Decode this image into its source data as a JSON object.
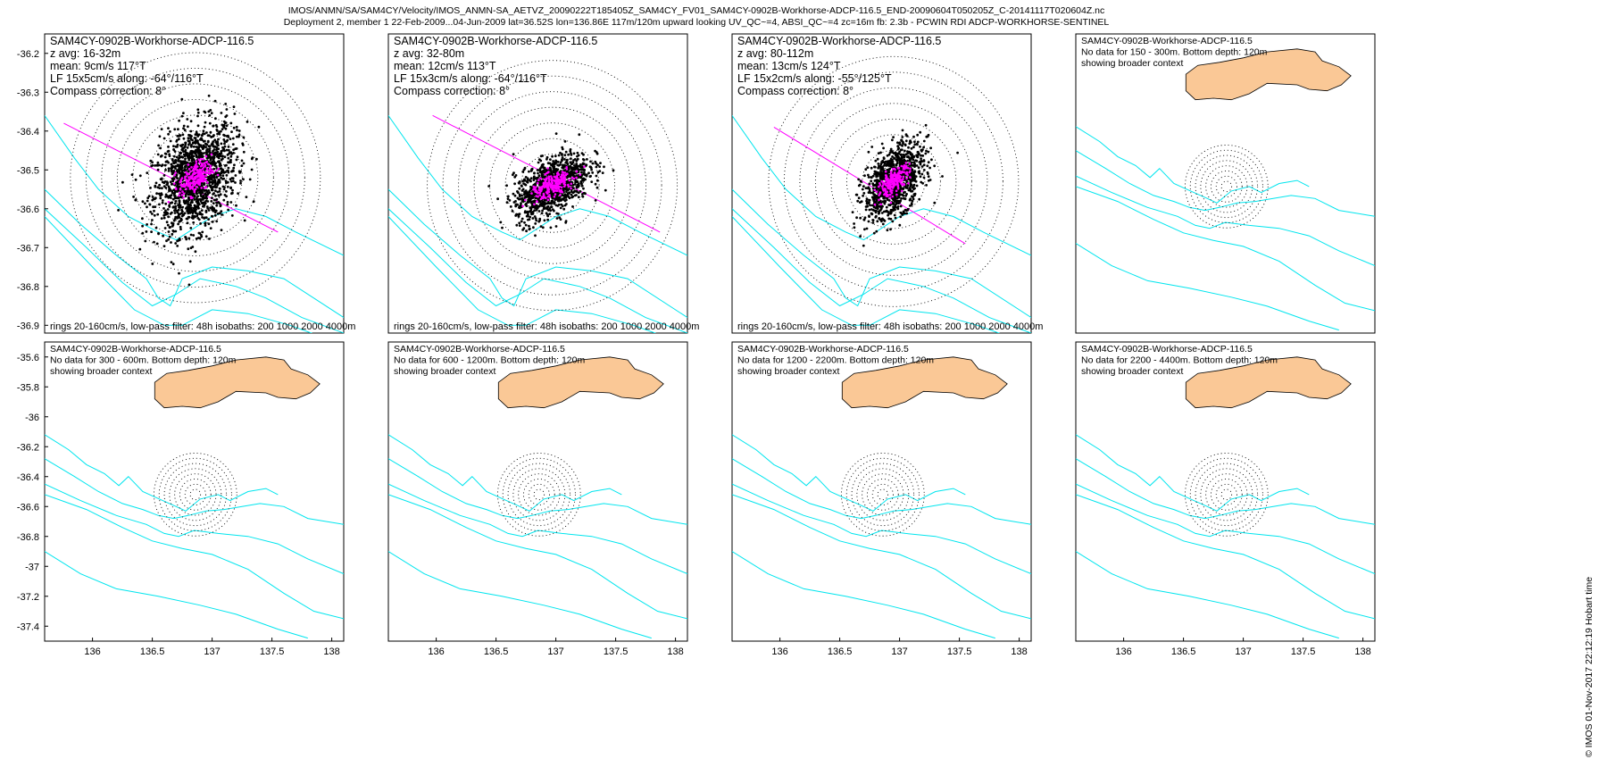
{
  "header": {
    "line1": "IMOS/ANMN/SA/SAM4CY/Velocity/IMOS_ANMN-SA_AETVZ_20090222T185405Z_SAM4CY_FV01_SAM4CY-0902B-Workhorse-ADCP-116.5_END-20090604T050205Z_C-20141117T020604Z.nc",
    "line2": "Deployment 2, member 1 22-Feb-2009...04-Jun-2009 lat=36.52S lon=136.86E 117m/120m upward looking UV_QC~=4, ABSI_QC~=4 zc=16m fb: 2.3b - PCWIN RDI ADCP-WORKHORSE-SENTINEL"
  },
  "credit": "© IMOS 01-Nov-2017 22:12:19 Hobart time",
  "chart_data": [
    {
      "type": "scatter",
      "panel": "velocity-hodograph",
      "lines": [
        "SAM4CY-0902B-Workhorse-ADCP-116.5",
        "z avg: 16-32m",
        "mean: 9cm/s 117°T",
        "LF 15x5cm/s along: -64°/116°T",
        "Compass correction: 8°"
      ],
      "footer": "rings 20-160cm/s, low-pass filter: 48h isobaths: 200 1000 2000 4000m",
      "xlim": [
        135.6,
        138.1
      ],
      "ylim": [
        -36.92,
        -36.15
      ],
      "yticks": [
        "-36.2",
        "-36.3",
        "-36.4",
        "-36.5",
        "-36.6",
        "-36.7",
        "-36.8",
        "-36.9"
      ],
      "center": [
        136.86,
        -36.52
      ],
      "rings": 8,
      "spread": [
        0.19,
        0.065
      ],
      "lf_spread": [
        0.075,
        0.02
      ],
      "major_axis": {
        "along_deg": 116,
        "start": [
          135.76,
          -36.38
        ],
        "end": [
          137.55,
          -36.66
        ]
      },
      "colors": {
        "rings": "#000000",
        "raw": "#000000",
        "low_pass": "#ff00ff",
        "major_axis": "#ff00ff",
        "isobaths": "#00e5ee"
      }
    },
    {
      "type": "scatter",
      "panel": "velocity-hodograph",
      "lines": [
        "SAM4CY-0902B-Workhorse-ADCP-116.5",
        "z avg: 32-80m",
        "mean: 12cm/s 113°T",
        "LF 15x3cm/s along: -64°/116°T",
        "Compass correction: 8°"
      ],
      "footer": "rings 20-160cm/s, low-pass filter: 48h isobaths: 200 1000 2000 4000m",
      "xlim": [
        135.6,
        138.1
      ],
      "ylim": [
        -36.92,
        -36.15
      ],
      "center": [
        136.97,
        -36.54
      ],
      "rings": 8,
      "spread": [
        0.17,
        0.035
      ],
      "lf_spread": [
        0.1,
        0.015
      ],
      "major_axis": {
        "along_deg": 116,
        "start": [
          135.97,
          -36.36
        ],
        "end": [
          137.87,
          -36.66
        ]
      },
      "colors": {
        "rings": "#000000",
        "raw": "#000000",
        "low_pass": "#ff00ff",
        "major_axis": "#ff00ff",
        "isobaths": "#00e5ee"
      }
    },
    {
      "type": "scatter",
      "panel": "velocity-hodograph",
      "lines": [
        "SAM4CY-0902B-Workhorse-ADCP-116.5",
        "z avg: 80-112m",
        "mean: 13cm/s 124°T",
        "LF 15x2cm/s along: -55°/125°T",
        "Compass correction: 8°"
      ],
      "footer": "rings 20-160cm/s, low-pass filter: 48h isobaths: 200 1000 2000 4000m",
      "xlim": [
        135.6,
        138.1
      ],
      "ylim": [
        -36.92,
        -36.15
      ],
      "center": [
        136.95,
        -36.53
      ],
      "rings": 8,
      "spread": [
        0.15,
        0.04
      ],
      "lf_spread": [
        0.08,
        0.015
      ],
      "major_axis": {
        "along_deg": 125,
        "start": [
          135.95,
          -36.39
        ],
        "end": [
          137.55,
          -36.69
        ]
      },
      "colors": {
        "rings": "#000000",
        "raw": "#000000",
        "low_pass": "#ff00ff",
        "major_axis": "#ff00ff",
        "isobaths": "#00e5ee"
      }
    },
    {
      "type": "map",
      "panel": "no-data",
      "lines": [
        "SAM4CY-0902B-Workhorse-ADCP-116.5",
        "No data for 150 - 300m. Bottom depth: 120m",
        "showing broader context"
      ],
      "xlim": [
        135.6,
        138.1
      ],
      "ylim": [
        -37.5,
        -35.5
      ],
      "center": [
        136.86,
        -36.52
      ],
      "rings": 8,
      "colors": {
        "land": "#fac896",
        "rings": "#000000",
        "isobaths": "#00e5ee"
      }
    },
    {
      "type": "map",
      "panel": "no-data",
      "lines": [
        "SAM4CY-0902B-Workhorse-ADCP-116.5",
        "No data for 300 - 600m. Bottom depth: 120m",
        "showing broader context"
      ],
      "xlim": [
        135.6,
        138.1
      ],
      "ylim": [
        -37.5,
        -35.5
      ],
      "yticks": [
        "-35.6",
        "-35.8",
        "-36",
        "-36.2",
        "-36.4",
        "-36.6",
        "-36.8",
        "-37",
        "-37.2",
        "-37.4"
      ],
      "xticks": [
        "136",
        "136.5",
        "137",
        "137.5",
        "138"
      ],
      "center": [
        136.86,
        -36.52
      ],
      "rings": 8,
      "colors": {
        "land": "#fac896",
        "rings": "#000000",
        "isobaths": "#00e5ee"
      }
    },
    {
      "type": "map",
      "panel": "no-data",
      "lines": [
        "SAM4CY-0902B-Workhorse-ADCP-116.5",
        "No data for 600 - 1200m. Bottom depth: 120m",
        "showing broader context"
      ],
      "xlim": [
        135.6,
        138.1
      ],
      "ylim": [
        -37.5,
        -35.5
      ],
      "xticks": [
        "136",
        "136.5",
        "137",
        "137.5",
        "138"
      ],
      "center": [
        136.86,
        -36.52
      ],
      "rings": 8,
      "colors": {
        "land": "#fac896",
        "rings": "#000000",
        "isobaths": "#00e5ee"
      }
    },
    {
      "type": "map",
      "panel": "no-data",
      "lines": [
        "SAM4CY-0902B-Workhorse-ADCP-116.5",
        "No data for 1200 - 2200m. Bottom depth: 120m",
        "showing broader context"
      ],
      "xlim": [
        135.6,
        138.1
      ],
      "ylim": [
        -37.5,
        -35.5
      ],
      "xticks": [
        "136",
        "136.5",
        "137",
        "137.5",
        "138"
      ],
      "center": [
        136.86,
        -36.52
      ],
      "rings": 8,
      "colors": {
        "land": "#fac896",
        "rings": "#000000",
        "isobaths": "#00e5ee"
      }
    },
    {
      "type": "map",
      "panel": "no-data",
      "lines": [
        "SAM4CY-0902B-Workhorse-ADCP-116.5",
        "No data for 2200 - 4400m. Bottom depth: 120m",
        "showing broader context"
      ],
      "xlim": [
        135.6,
        138.1
      ],
      "ylim": [
        -37.5,
        -35.5
      ],
      "xticks": [
        "136",
        "136.5",
        "137",
        "137.5",
        "138"
      ],
      "center": [
        136.86,
        -36.52
      ],
      "rings": 8,
      "colors": {
        "land": "#fac896",
        "rings": "#000000",
        "isobaths": "#00e5ee"
      }
    }
  ]
}
